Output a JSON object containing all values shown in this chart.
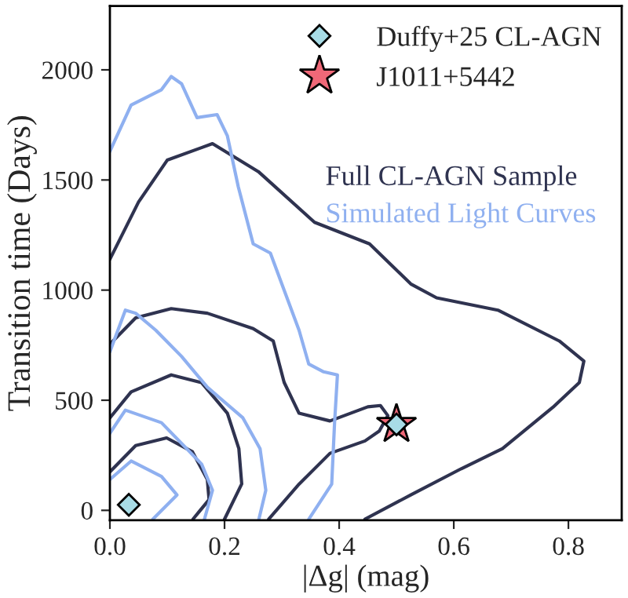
{
  "chart_data": {
    "type": "line",
    "xlabel": "|Δg| (mag)",
    "ylabel": "Transition time (Days)",
    "xlim": [
      0,
      0.893
    ],
    "ylim": [
      -45,
      2290
    ],
    "xticks": [
      {
        "value": 0,
        "label": "0.0"
      },
      {
        "value": 0.2,
        "label": "0.2"
      },
      {
        "value": 0.4,
        "label": "0.4"
      },
      {
        "value": 0.6,
        "label": "0.6"
      },
      {
        "value": 0.8,
        "label": "0.8"
      }
    ],
    "yticks": [
      0,
      500,
      1000,
      1500,
      2000
    ],
    "grid": false,
    "legend": "top right",
    "series": [
      {
        "name": "Full CL-AGN Sample",
        "color": "#2f3350",
        "marker": "none",
        "x": [
          0,
          0.05,
          0.1,
          0.179,
          0.259,
          0.357,
          0.453,
          0.525,
          0.57,
          0.677,
          0.784,
          0.827,
          0.819,
          0.773,
          0.685,
          0.613,
          0.525,
          0.445
        ],
        "values": [
          1140,
          1400,
          1590,
          1665,
          1538,
          1308,
          1210,
          1028,
          965,
          909,
          769,
          678,
          580,
          468,
          280,
          189,
          70,
          -40
        ]
      },
      {
        "color": "#2f3350",
        "marker": "none",
        "x": [
          0.277,
          0.33,
          0.384,
          0.445,
          0.47,
          0.485,
          0.472,
          0.45,
          0.384,
          0.33,
          0.304,
          0.285,
          0.25,
          0.17,
          0.107,
          0.045,
          0
        ],
        "values": [
          -40,
          119,
          259,
          315,
          360,
          430,
          476,
          470,
          406,
          441,
          581,
          769,
          825,
          895,
          916,
          874,
          755
        ]
      },
      {
        "color": "#2f3350",
        "marker": "none",
        "x": [
          0,
          0.037,
          0.107,
          0.16,
          0.205,
          0.225,
          0.23,
          0.2
        ],
        "values": [
          420,
          538,
          615,
          580,
          441,
          280,
          120,
          -40
        ]
      },
      {
        "color": "#2f3350",
        "marker": "none",
        "x": [
          0,
          0.045,
          0.099,
          0.144,
          0.17,
          0.173,
          0.145
        ],
        "values": [
          175,
          294,
          329,
          266,
          140,
          49,
          -40
        ]
      },
      {
        "name": "Simulated Light Curves",
        "color": "#8fb0f0",
        "marker": "none",
        "x": [
          0,
          0.037,
          0.09,
          0.107,
          0.125,
          0.152,
          0.187,
          0.205,
          0.224,
          0.25,
          0.28,
          0.304,
          0.33,
          0.347,
          0.373,
          0.397,
          0.392,
          0.387,
          0.347
        ],
        "values": [
          1630,
          1840,
          1910,
          1970,
          1937,
          1783,
          1797,
          1700,
          1469,
          1210,
          1168,
          1000,
          818,
          664,
          629,
          615,
          398,
          119,
          -40
        ]
      },
      {
        "color": "#8fb0f0",
        "marker": "none",
        "x": [
          0,
          0.027,
          0.045,
          0.08,
          0.125,
          0.17,
          0.232,
          0.262,
          0.272,
          0.26
        ],
        "values": [
          720,
          909,
          895,
          818,
          699,
          559,
          420,
          280,
          91,
          -40
        ]
      },
      {
        "color": "#8fb0f0",
        "marker": "none",
        "x": [
          0,
          0.027,
          0.09,
          0.16,
          0.179,
          0.165
        ],
        "values": [
          350,
          455,
          398,
          210,
          91,
          -40
        ]
      },
      {
        "color": "#8fb0f0",
        "marker": "none",
        "x": [
          0,
          0.037,
          0.09,
          0.117,
          0.075
        ],
        "values": [
          140,
          224,
          154,
          70,
          -40
        ]
      },
      {
        "name": "J1011+5442",
        "type": "scatter",
        "color": "#f06878",
        "marker": "star",
        "x": [
          0.5
        ],
        "values": [
          390
        ]
      },
      {
        "name": "Duffy+25 CL-AGN",
        "type": "scatter",
        "color": "#a8dce6",
        "marker": "diamond",
        "x": [
          0.033,
          0.5
        ],
        "values": [
          25,
          390
        ]
      }
    ]
  }
}
